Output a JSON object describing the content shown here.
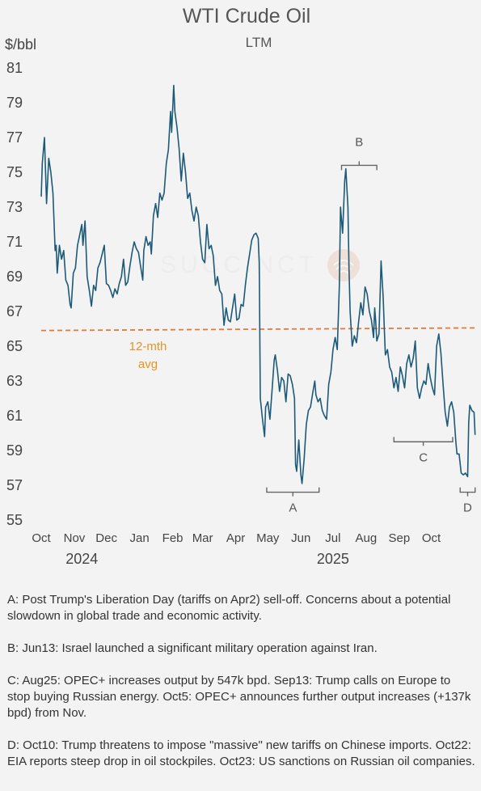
{
  "header": {
    "title": "WTI Crude Oil",
    "subtitle": "LTM",
    "unit": "$/bbl"
  },
  "colors": {
    "line": "#1c5a78",
    "avg_line": "#e07b3c",
    "avg_label": "#e79422",
    "bracket": "#666666"
  },
  "chart_data": {
    "type": "line",
    "title": "WTI Crude Oil",
    "subtitle": "LTM",
    "ylabel": "$/bbl",
    "ylim": [
      55,
      81
    ],
    "yticks": [
      55,
      57,
      59,
      61,
      63,
      65,
      67,
      69,
      71,
      73,
      75,
      77,
      79,
      81
    ],
    "xlim": [
      "2024-10-01",
      "2025-11-01"
    ],
    "x_ticks": [
      {
        "date": "2024-10-01",
        "label": "Oct"
      },
      {
        "date": "2024-11-01",
        "label": "Nov"
      },
      {
        "date": "2024-12-01",
        "label": "Dec"
      },
      {
        "date": "2025-01-01",
        "label": "Jan"
      },
      {
        "date": "2025-02-01",
        "label": "Feb"
      },
      {
        "date": "2025-03-01",
        "label": "Mar"
      },
      {
        "date": "2025-04-01",
        "label": "Apr"
      },
      {
        "date": "2025-05-01",
        "label": "May"
      },
      {
        "date": "2025-06-01",
        "label": "Jun"
      },
      {
        "date": "2025-07-01",
        "label": "Jul"
      },
      {
        "date": "2025-08-01",
        "label": "Aug"
      },
      {
        "date": "2025-09-01",
        "label": "Sep"
      },
      {
        "date": "2025-10-01",
        "label": "Oct"
      }
    ],
    "year_labels": [
      {
        "date": "2024-11-08",
        "label": "2024"
      },
      {
        "date": "2025-07-01",
        "label": "2025"
      }
    ],
    "grid": false,
    "series": [
      {
        "points": [
          [
            "2024-10-01",
            73.6
          ],
          [
            "2024-10-02",
            75.5
          ],
          [
            "2024-10-04",
            77.0
          ],
          [
            "2024-10-06",
            73.2
          ],
          [
            "2024-10-08",
            75.8
          ],
          [
            "2024-10-10",
            75.0
          ],
          [
            "2024-10-12",
            73.8
          ],
          [
            "2024-10-14",
            70.5
          ],
          [
            "2024-10-15",
            70.8
          ],
          [
            "2024-10-16",
            69.2
          ],
          [
            "2024-10-18",
            70.8
          ],
          [
            "2024-10-20",
            70.0
          ],
          [
            "2024-10-22",
            70.5
          ],
          [
            "2024-10-24",
            68.8
          ],
          [
            "2024-10-26",
            68.5
          ],
          [
            "2024-10-28",
            67.4
          ],
          [
            "2024-10-29",
            67.2
          ],
          [
            "2024-10-31",
            69.2
          ],
          [
            "2024-11-02",
            69.5
          ],
          [
            "2024-11-04",
            70.8
          ],
          [
            "2024-11-06",
            71.4
          ],
          [
            "2024-11-08",
            72.0
          ],
          [
            "2024-11-09",
            70.8
          ],
          [
            "2024-11-11",
            72.2
          ],
          [
            "2024-11-13",
            69.0
          ],
          [
            "2024-11-15",
            68.2
          ],
          [
            "2024-11-17",
            67.3
          ],
          [
            "2024-11-19",
            68.5
          ],
          [
            "2024-11-21",
            68.2
          ],
          [
            "2024-11-23",
            69.5
          ],
          [
            "2024-11-25",
            69.8
          ],
          [
            "2024-11-27",
            70.3
          ],
          [
            "2024-11-29",
            70.8
          ],
          [
            "2024-12-01",
            68.6
          ],
          [
            "2024-12-03",
            68.5
          ],
          [
            "2024-12-05",
            68.2
          ],
          [
            "2024-12-07",
            67.8
          ],
          [
            "2024-12-09",
            68.3
          ],
          [
            "2024-12-11",
            68.0
          ],
          [
            "2024-12-13",
            68.6
          ],
          [
            "2024-12-15",
            69.0
          ],
          [
            "2024-12-17",
            70.0
          ],
          [
            "2024-12-19",
            68.5
          ],
          [
            "2024-12-21",
            68.7
          ],
          [
            "2024-12-23",
            69.6
          ],
          [
            "2024-12-25",
            70.4
          ],
          [
            "2024-12-27",
            71.0
          ],
          [
            "2024-12-29",
            70.6
          ],
          [
            "2024-12-31",
            70.4
          ],
          [
            "2025-01-02",
            69.6
          ],
          [
            "2025-01-04",
            68.8
          ],
          [
            "2025-01-05",
            70.5
          ],
          [
            "2025-01-07",
            71.3
          ],
          [
            "2025-01-09",
            70.8
          ],
          [
            "2025-01-11",
            71.0
          ],
          [
            "2025-01-12",
            70.3
          ],
          [
            "2025-01-14",
            72.5
          ],
          [
            "2025-01-16",
            73.2
          ],
          [
            "2025-01-18",
            72.4
          ],
          [
            "2025-01-20",
            73.8
          ],
          [
            "2025-01-22",
            73.4
          ],
          [
            "2025-01-24",
            73.8
          ],
          [
            "2025-01-26",
            75.5
          ],
          [
            "2025-01-28",
            76.3
          ],
          [
            "2025-01-30",
            78.5
          ],
          [
            "2025-01-31",
            77.3
          ],
          [
            "2025-02-02",
            80.0
          ],
          [
            "2025-02-03",
            78.5
          ],
          [
            "2025-02-05",
            77.6
          ],
          [
            "2025-02-07",
            76.4
          ],
          [
            "2025-02-09",
            74.5
          ],
          [
            "2025-02-11",
            76.1
          ],
          [
            "2025-02-13",
            75.0
          ],
          [
            "2025-02-15",
            73.5
          ],
          [
            "2025-02-17",
            73.8
          ],
          [
            "2025-02-19",
            72.8
          ],
          [
            "2025-02-21",
            72.2
          ],
          [
            "2025-02-23",
            73.0
          ],
          [
            "2025-02-25",
            72.5
          ],
          [
            "2025-02-27",
            71.0
          ],
          [
            "2025-03-01",
            70.0
          ],
          [
            "2025-03-03",
            69.8
          ],
          [
            "2025-03-05",
            72.0
          ],
          [
            "2025-03-07",
            70.6
          ],
          [
            "2025-03-09",
            70.8
          ],
          [
            "2025-03-11",
            70.2
          ],
          [
            "2025-03-13",
            68.5
          ],
          [
            "2025-03-15",
            69.0
          ],
          [
            "2025-03-17",
            68.2
          ],
          [
            "2025-03-19",
            68.0
          ],
          [
            "2025-03-21",
            66.2
          ],
          [
            "2025-03-23",
            67.2
          ],
          [
            "2025-03-25",
            66.5
          ],
          [
            "2025-03-27",
            66.4
          ],
          [
            "2025-03-29",
            67.2
          ],
          [
            "2025-03-31",
            68.0
          ],
          [
            "2025-04-02",
            66.5
          ],
          [
            "2025-04-04",
            66.6
          ],
          [
            "2025-04-06",
            67.4
          ],
          [
            "2025-04-08",
            67.3
          ],
          [
            "2025-04-10",
            68.5
          ],
          [
            "2025-04-12",
            69.5
          ],
          [
            "2025-04-14",
            70.3
          ],
          [
            "2025-04-16",
            71.1
          ],
          [
            "2025-04-18",
            71.4
          ],
          [
            "2025-04-20",
            71.5
          ],
          [
            "2025-04-22",
            71.2
          ],
          [
            "2025-04-23",
            69.8
          ],
          [
            "2025-04-24",
            62.0
          ],
          [
            "2025-04-26",
            60.8
          ],
          [
            "2025-04-28",
            59.8
          ],
          [
            "2025-04-29",
            61.5
          ],
          [
            "2025-05-01",
            61.8
          ],
          [
            "2025-05-03",
            60.8
          ],
          [
            "2025-05-05",
            62.5
          ],
          [
            "2025-05-07",
            64.2
          ],
          [
            "2025-05-08",
            64.5
          ],
          [
            "2025-05-10",
            63.6
          ],
          [
            "2025-05-12",
            62.4
          ],
          [
            "2025-05-14",
            63.2
          ],
          [
            "2025-05-16",
            63.0
          ],
          [
            "2025-05-18",
            61.8
          ],
          [
            "2025-05-20",
            63.4
          ],
          [
            "2025-05-22",
            63.3
          ],
          [
            "2025-05-24",
            62.8
          ],
          [
            "2025-05-26",
            62.0
          ],
          [
            "2025-05-27",
            58.2
          ],
          [
            "2025-05-28",
            57.8
          ],
          [
            "2025-05-30",
            59.6
          ],
          [
            "2025-06-01",
            57.6
          ],
          [
            "2025-06-02",
            57.1
          ],
          [
            "2025-06-04",
            58.5
          ],
          [
            "2025-06-06",
            60.5
          ],
          [
            "2025-06-08",
            61.3
          ],
          [
            "2025-06-10",
            61.5
          ],
          [
            "2025-06-12",
            62.3
          ],
          [
            "2025-06-14",
            63.0
          ],
          [
            "2025-06-15",
            62.2
          ],
          [
            "2025-06-17",
            61.8
          ],
          [
            "2025-06-19",
            62.0
          ],
          [
            "2025-06-21",
            61.3
          ],
          [
            "2025-06-23",
            61.0
          ],
          [
            "2025-06-25",
            60.8
          ],
          [
            "2025-06-27",
            62.8
          ],
          [
            "2025-06-29",
            63.5
          ],
          [
            "2025-07-01",
            64.8
          ],
          [
            "2025-07-03",
            65.5
          ],
          [
            "2025-07-05",
            64.8
          ],
          [
            "2025-07-07",
            68.5
          ],
          [
            "2025-07-08",
            73.0
          ],
          [
            "2025-07-10",
            71.5
          ],
          [
            "2025-07-12",
            74.5
          ],
          [
            "2025-07-13",
            75.2
          ],
          [
            "2025-07-15",
            73.0
          ],
          [
            "2025-07-16",
            69.5
          ],
          [
            "2025-07-17",
            67.0
          ],
          [
            "2025-07-19",
            65.0
          ],
          [
            "2025-07-21",
            65.6
          ],
          [
            "2025-07-23",
            65.2
          ],
          [
            "2025-07-25",
            66.4
          ],
          [
            "2025-07-27",
            67.5
          ],
          [
            "2025-07-29",
            66.8
          ],
          [
            "2025-07-31",
            68.4
          ],
          [
            "2025-08-02",
            68.0
          ],
          [
            "2025-08-04",
            67.0
          ],
          [
            "2025-08-06",
            66.5
          ],
          [
            "2025-08-08",
            65.5
          ],
          [
            "2025-08-09",
            67.2
          ],
          [
            "2025-08-10",
            66.4
          ],
          [
            "2025-08-11",
            65.3
          ],
          [
            "2025-08-13",
            65.7
          ],
          [
            "2025-08-15",
            69.9
          ],
          [
            "2025-08-17",
            67.8
          ],
          [
            "2025-08-18",
            66.0
          ],
          [
            "2025-08-19",
            64.5
          ],
          [
            "2025-08-21",
            64.8
          ],
          [
            "2025-08-23",
            63.8
          ],
          [
            "2025-08-25",
            63.5
          ],
          [
            "2025-08-27",
            62.6
          ],
          [
            "2025-08-29",
            63.2
          ],
          [
            "2025-08-31",
            62.4
          ],
          [
            "2025-09-02",
            63.8
          ],
          [
            "2025-09-04",
            63.3
          ],
          [
            "2025-09-06",
            62.6
          ],
          [
            "2025-09-08",
            64.0
          ],
          [
            "2025-09-10",
            64.5
          ],
          [
            "2025-09-12",
            63.8
          ],
          [
            "2025-09-14",
            64.3
          ],
          [
            "2025-09-16",
            65.3
          ],
          [
            "2025-09-18",
            62.6
          ],
          [
            "2025-09-20",
            62.0
          ],
          [
            "2025-09-22",
            62.6
          ],
          [
            "2025-09-24",
            63.0
          ],
          [
            "2025-09-26",
            62.8
          ],
          [
            "2025-09-28",
            64.0
          ],
          [
            "2025-09-30",
            63.2
          ],
          [
            "2025-10-02",
            62.6
          ],
          [
            "2025-10-04",
            62.2
          ],
          [
            "2025-10-06",
            65.0
          ],
          [
            "2025-10-08",
            65.7
          ],
          [
            "2025-10-10",
            64.6
          ],
          [
            "2025-10-12",
            62.8
          ],
          [
            "2025-10-14",
            61.2
          ],
          [
            "2025-10-16",
            60.4
          ],
          [
            "2025-10-18",
            61.5
          ],
          [
            "2025-10-20",
            61.8
          ],
          [
            "2025-10-22",
            61.2
          ],
          [
            "2025-10-24",
            59.5
          ],
          [
            "2025-10-25",
            58.8
          ],
          [
            "2025-10-27",
            58.8
          ],
          [
            "2025-10-29",
            57.7
          ],
          [
            "2025-10-31",
            57.6
          ],
          [
            "2025-11-02",
            57.7
          ],
          [
            "2025-11-04",
            57.5
          ],
          [
            "2025-11-05",
            60.6
          ],
          [
            "2025-11-06",
            61.6
          ],
          [
            "2025-11-08",
            61.3
          ],
          [
            "2025-11-10",
            61.2
          ],
          [
            "2025-11-11",
            59.9
          ]
        ]
      }
    ],
    "average_line": {
      "label_line1": "12-mth",
      "label_line2": "avg",
      "start": [
        "2024-10-01",
        65.9
      ],
      "end": [
        "2025-11-11",
        66.05
      ]
    },
    "annotations": [
      {
        "label": "A",
        "from": "2025-04-30",
        "to": "2025-06-18",
        "side": "below",
        "level": 56.6
      },
      {
        "label": "B",
        "from": "2025-07-09",
        "to": "2025-08-11",
        "side": "above",
        "level": 75.4
      },
      {
        "label": "C",
        "from": "2025-08-27",
        "to": "2025-10-21",
        "side": "below",
        "level": 59.5
      },
      {
        "label": "D",
        "from": "2025-10-28",
        "to": "2025-11-11",
        "side": "below",
        "level": 56.6
      }
    ]
  },
  "notes": [
    {
      "text": "A: Post Trump's Liberation Day (tariffs on Apr2) sell-off. Concerns about a potential slowdown in global trade and economic activity."
    },
    {
      "text": "B: Jun13: Israel launched a significant military operation against Iran."
    },
    {
      "text": "C: Aug25: OPEC+ increases output by 547k bpd. Sep13: Trump calls on Europe to stop buying Russian energy. Oct5: OPEC+ announces further output increases (+137k bpd) from Nov."
    },
    {
      "text": "D: Oct10: Trump threatens to impose \"massive\" new tariffs on Chinese imports. Oct22: EIA reports steep drop in oil stockpiles. Oct23: US sanctions on Russian oil companies."
    }
  ]
}
